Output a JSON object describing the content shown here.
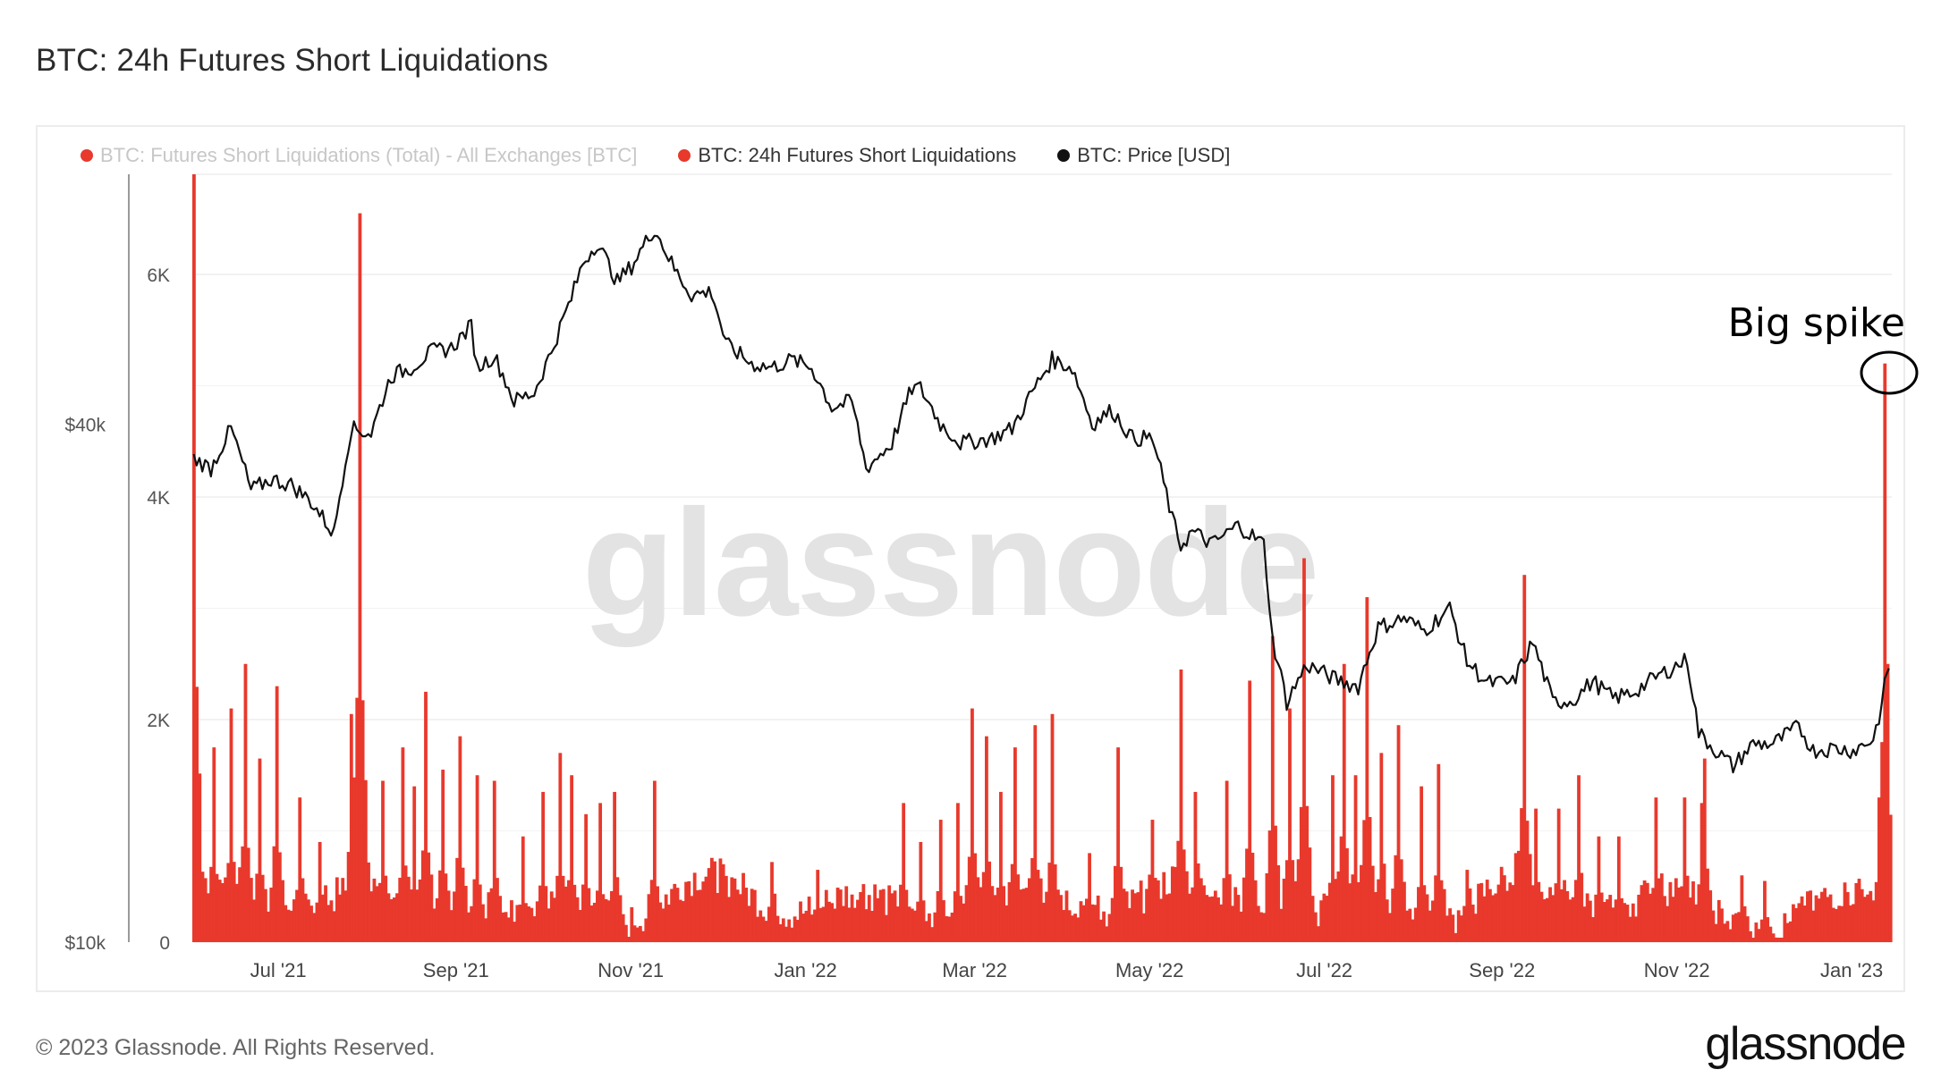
{
  "page": {
    "title": "BTC: 24h Futures Short Liquidations"
  },
  "legend": [
    {
      "label": "BTC: Futures Short Liquidations (Total) - All Exchanges [BTC]",
      "color": "#e8392c",
      "faded": true
    },
    {
      "label": "BTC: 24h Futures Short Liquidations",
      "color": "#e8392c",
      "faded": false
    },
    {
      "label": "BTC: Price [USD]",
      "color": "#111111",
      "faded": false
    }
  ],
  "annotation": {
    "text": "Big spike"
  },
  "watermark": "glassnode",
  "footer": {
    "copyright": "© 2023 Glassnode. All Rights Reserved.",
    "brand": "glassnode"
  },
  "colors": {
    "bars": "#e8392c",
    "price": "#111111",
    "grid": "#eeeeee",
    "axis_text": "#555555"
  },
  "chart_data": {
    "type": "bar",
    "x_start": "2021-06-01",
    "x_end": "2023-01-15",
    "x_ticks": [
      "Jul '21",
      "Sep '21",
      "Nov '21",
      "Jan '22",
      "Mar '22",
      "May '22",
      "Jul '22",
      "Sep '22",
      "Nov '22",
      "Jan '23"
    ],
    "x_tick_dates": [
      "2021-07-01",
      "2021-09-01",
      "2021-11-01",
      "2022-01-01",
      "2022-03-01",
      "2022-05-01",
      "2022-07-01",
      "2022-09-01",
      "2022-11-01",
      "2023-01-01"
    ],
    "y_left": {
      "ticks": [
        "0",
        "2K",
        "4K",
        "6K"
      ],
      "tick_values": [
        0,
        2000,
        4000,
        6000
      ],
      "range": [
        0,
        6900
      ]
    },
    "y_price": {
      "scale": "log",
      "ticks": [
        "$10k",
        "$40k"
      ],
      "tick_values": [
        10000,
        40000
      ],
      "range": [
        10000,
        78000
      ]
    },
    "grid": true,
    "legend_position": "top-left",
    "series": [
      {
        "name": "BTC: 24h Futures Short Liquidations",
        "type": "bar",
        "color": "#e8392c",
        "spikes": [
          {
            "date": "2021-06-01",
            "value": 6900
          },
          {
            "date": "2021-06-08",
            "value": 1750
          },
          {
            "date": "2021-06-14",
            "value": 2100
          },
          {
            "date": "2021-06-19",
            "value": 2500
          },
          {
            "date": "2021-06-24",
            "value": 1650
          },
          {
            "date": "2021-06-30",
            "value": 2300
          },
          {
            "date": "2021-07-08",
            "value": 1300
          },
          {
            "date": "2021-07-15",
            "value": 900
          },
          {
            "date": "2021-07-26",
            "value": 2050
          },
          {
            "date": "2021-07-29",
            "value": 6550
          },
          {
            "date": "2021-08-06",
            "value": 1450
          },
          {
            "date": "2021-08-13",
            "value": 1750
          },
          {
            "date": "2021-08-17",
            "value": 1400
          },
          {
            "date": "2021-08-21",
            "value": 2250
          },
          {
            "date": "2021-08-27",
            "value": 1550
          },
          {
            "date": "2021-09-02",
            "value": 1850
          },
          {
            "date": "2021-09-08",
            "value": 1500
          },
          {
            "date": "2021-09-14",
            "value": 1450
          },
          {
            "date": "2021-09-24",
            "value": 950
          },
          {
            "date": "2021-10-01",
            "value": 1350
          },
          {
            "date": "2021-10-07",
            "value": 1700
          },
          {
            "date": "2021-10-11",
            "value": 1500
          },
          {
            "date": "2021-10-16",
            "value": 1150
          },
          {
            "date": "2021-10-21",
            "value": 1250
          },
          {
            "date": "2021-10-26",
            "value": 1350
          },
          {
            "date": "2021-11-09",
            "value": 1450
          },
          {
            "date": "2021-12-03",
            "value": 700
          },
          {
            "date": "2021-12-20",
            "value": 720
          },
          {
            "date": "2022-01-05",
            "value": 650
          },
          {
            "date": "2022-01-20",
            "value": 450
          },
          {
            "date": "2022-02-04",
            "value": 1250
          },
          {
            "date": "2022-02-10",
            "value": 900
          },
          {
            "date": "2022-02-17",
            "value": 1100
          },
          {
            "date": "2022-02-23",
            "value": 1250
          },
          {
            "date": "2022-02-28",
            "value": 2100
          },
          {
            "date": "2022-03-05",
            "value": 1850
          },
          {
            "date": "2022-03-10",
            "value": 1350
          },
          {
            "date": "2022-03-15",
            "value": 1750
          },
          {
            "date": "2022-03-22",
            "value": 1950
          },
          {
            "date": "2022-03-28",
            "value": 2050
          },
          {
            "date": "2022-04-10",
            "value": 800
          },
          {
            "date": "2022-04-20",
            "value": 1750
          },
          {
            "date": "2022-05-02",
            "value": 1100
          },
          {
            "date": "2022-05-12",
            "value": 2450
          },
          {
            "date": "2022-05-17",
            "value": 1350
          },
          {
            "date": "2022-05-28",
            "value": 1450
          },
          {
            "date": "2022-06-05",
            "value": 2350
          },
          {
            "date": "2022-06-13",
            "value": 2750
          },
          {
            "date": "2022-06-19",
            "value": 2100
          },
          {
            "date": "2022-06-24",
            "value": 3450
          },
          {
            "date": "2022-07-04",
            "value": 1500
          },
          {
            "date": "2022-07-08",
            "value": 2500
          },
          {
            "date": "2022-07-12",
            "value": 1500
          },
          {
            "date": "2022-07-16",
            "value": 3100
          },
          {
            "date": "2022-07-21",
            "value": 1700
          },
          {
            "date": "2022-07-27",
            "value": 1950
          },
          {
            "date": "2022-08-04",
            "value": 1400
          },
          {
            "date": "2022-08-10",
            "value": 1600
          },
          {
            "date": "2022-08-20",
            "value": 650
          },
          {
            "date": "2022-09-06",
            "value": 800
          },
          {
            "date": "2022-09-09",
            "value": 3300
          },
          {
            "date": "2022-09-13",
            "value": 1200
          },
          {
            "date": "2022-09-21",
            "value": 1200
          },
          {
            "date": "2022-09-28",
            "value": 1500
          },
          {
            "date": "2022-10-05",
            "value": 950
          },
          {
            "date": "2022-10-12",
            "value": 950
          },
          {
            "date": "2022-10-25",
            "value": 1300
          },
          {
            "date": "2022-11-04",
            "value": 1300
          },
          {
            "date": "2022-11-10",
            "value": 1250
          },
          {
            "date": "2022-11-11",
            "value": 1650
          },
          {
            "date": "2022-11-24",
            "value": 600
          },
          {
            "date": "2022-12-02",
            "value": 550
          },
          {
            "date": "2022-12-14",
            "value": 350
          },
          {
            "date": "2022-12-28",
            "value": 250
          },
          {
            "date": "2023-01-08",
            "value": 400
          },
          {
            "date": "2023-01-11",
            "value": 1300
          },
          {
            "date": "2023-01-13",
            "value": 5200
          },
          {
            "date": "2023-01-14",
            "value": 2500
          }
        ]
      },
      {
        "name": "BTC: Price [USD]",
        "type": "line",
        "color": "#111111",
        "dates": [
          "2021-06-01",
          "2021-06-07",
          "2021-06-14",
          "2021-06-21",
          "2021-06-28",
          "2021-07-05",
          "2021-07-12",
          "2021-07-20",
          "2021-07-26",
          "2021-08-02",
          "2021-08-09",
          "2021-08-16",
          "2021-08-23",
          "2021-08-30",
          "2021-09-06",
          "2021-09-08",
          "2021-09-14",
          "2021-09-21",
          "2021-09-28",
          "2021-10-04",
          "2021-10-11",
          "2021-10-15",
          "2021-10-20",
          "2021-10-27",
          "2021-11-01",
          "2021-11-09",
          "2021-11-16",
          "2021-11-22",
          "2021-11-29",
          "2021-12-04",
          "2021-12-13",
          "2021-12-20",
          "2021-12-27",
          "2022-01-03",
          "2022-01-10",
          "2022-01-17",
          "2022-01-22",
          "2022-01-31",
          "2022-02-07",
          "2022-02-10",
          "2022-02-17",
          "2022-02-24",
          "2022-03-07",
          "2022-03-14",
          "2022-03-21",
          "2022-03-28",
          "2022-04-04",
          "2022-04-11",
          "2022-04-18",
          "2022-04-25",
          "2022-05-02",
          "2022-05-09",
          "2022-05-12",
          "2022-05-16",
          "2022-05-23",
          "2022-06-01",
          "2022-06-10",
          "2022-06-13",
          "2022-06-18",
          "2022-06-25",
          "2022-07-05",
          "2022-07-13",
          "2022-07-20",
          "2022-07-29",
          "2022-08-05",
          "2022-08-14",
          "2022-08-20",
          "2022-08-27",
          "2022-09-05",
          "2022-09-12",
          "2022-09-19",
          "2022-09-26",
          "2022-10-03",
          "2022-10-10",
          "2022-10-17",
          "2022-10-25",
          "2022-11-05",
          "2022-11-09",
          "2022-11-15",
          "2022-11-21",
          "2022-11-28",
          "2022-12-05",
          "2022-12-14",
          "2022-12-19",
          "2022-12-26",
          "2023-01-02",
          "2023-01-09",
          "2023-01-12",
          "2023-01-14"
        ],
        "values": [
          36500,
          35500,
          39500,
          33500,
          34500,
          34000,
          32500,
          29800,
          39500,
          39000,
          45500,
          46500,
          48500,
          49000,
          52000,
          46500,
          48000,
          42500,
          43500,
          48500,
          56000,
          61500,
          65000,
          58500,
          61000,
          67500,
          60500,
          56500,
          57000,
          49500,
          47000,
          46500,
          47500,
          46500,
          41800,
          42500,
          35500,
          38000,
          44000,
          44000,
          40000,
          38000,
          38500,
          39500,
          43500,
          47500,
          46500,
          40000,
          41500,
          38500,
          38500,
          31000,
          28900,
          30000,
          29000,
          30500,
          29000,
          22500,
          19000,
          21000,
          20200,
          19800,
          23200,
          23800,
          23000,
          24400,
          21200,
          20000,
          20000,
          22300,
          19000,
          19100,
          20100,
          19200,
          19500,
          20300,
          21300,
          17500,
          16700,
          16000,
          17000,
          17000,
          17800,
          16700,
          16800,
          16700,
          17200,
          18800,
          20800
        ]
      }
    ]
  }
}
